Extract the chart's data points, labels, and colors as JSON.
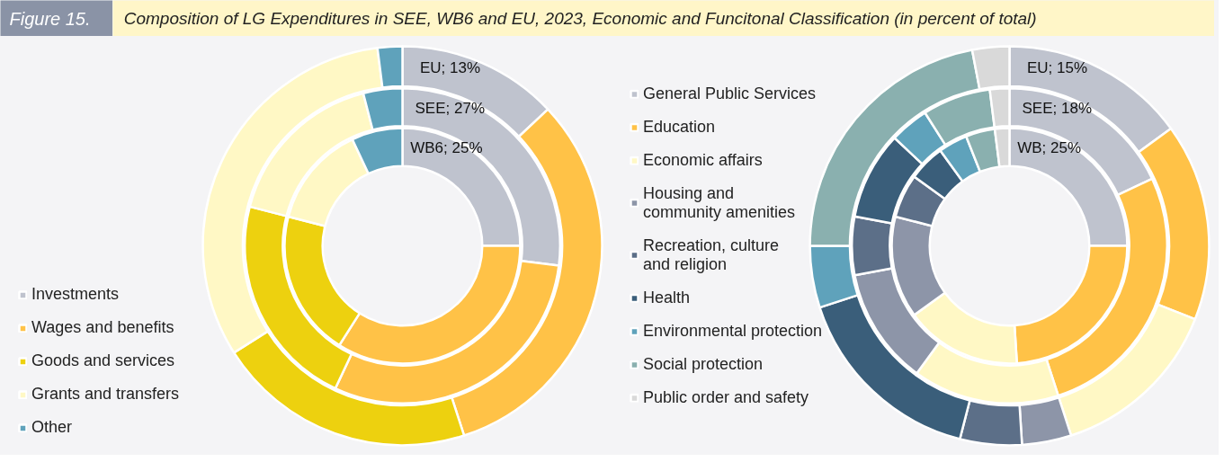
{
  "chart_data": [
    {
      "type": "donut",
      "title": "Figure 15.",
      "subtitle": "Composition of LG Expenditures in SEE, WB6 and EU, 2023, Economic and Funcitonal Classification (in percent of total)",
      "categories": [
        "Investments",
        "Wages and benefits",
        "Goods and services",
        "Grants and transfers",
        "Other"
      ],
      "colors": [
        "#bfc3ce",
        "#ffc247",
        "#edd10f",
        "#fff8c5",
        "#5fa2bb"
      ],
      "series": [
        {
          "values": [
            13,
            32,
            21,
            32,
            2
          ],
          "value_labels": [
            "EU; 13%",
            null,
            null,
            null,
            null
          ]
        },
        {
          "values": [
            27,
            30,
            22,
            17,
            4
          ],
          "value_labels": [
            "SEE; 27%",
            null,
            null,
            null,
            null
          ]
        },
        {
          "values": [
            25,
            34,
            20,
            14,
            7
          ],
          "value_labels": [
            "WB6; 25%",
            null,
            null,
            null,
            null
          ]
        }
      ],
      "legend": "bottom left"
    },
    {
      "type": "donut",
      "categories": [
        "General Public Services",
        "Education",
        "Economic affairs",
        "Housing and community amenities",
        "Recreation, culture and religion",
        "Health",
        "Environmental protection",
        "Social protection",
        "Public order and safety"
      ],
      "colors": [
        "#bfc3ce",
        "#ffc247",
        "#fff8c5",
        "#8d95a8",
        "#5c6f88",
        "#3a5e7a",
        "#5fa2bb",
        "#8ab0af",
        "#d9d9d9"
      ],
      "series": [
        {
          "values": [
            15,
            16,
            14,
            4,
            5,
            16,
            5,
            22,
            3
          ],
          "value_labels": [
            "EU; 15%",
            null,
            null,
            null,
            null,
            null,
            null,
            null,
            null
          ]
        },
        {
          "values": [
            18,
            27,
            15,
            12,
            6,
            9,
            4,
            7,
            2
          ],
          "value_labels": [
            "SEE; 18%",
            null,
            null,
            null,
            null,
            null,
            null,
            null,
            null
          ]
        },
        {
          "values": [
            25,
            24,
            16,
            14,
            6,
            5,
            4,
            4,
            2
          ],
          "value_labels": [
            "WB; 25%",
            null,
            null,
            null,
            null,
            null,
            null,
            null,
            null
          ]
        }
      ],
      "legend": "left"
    }
  ]
}
